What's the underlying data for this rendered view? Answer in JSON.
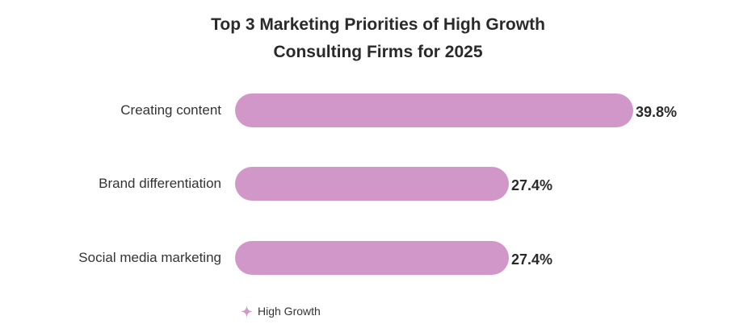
{
  "chart_data": {
    "type": "bar",
    "orientation": "horizontal",
    "title": "Top 3 Marketing Priorities of High Growth Consulting Firms for 2025",
    "title_lines": [
      "Top 3 Marketing Priorities of High Growth",
      "Consulting Firms for 2025"
    ],
    "categories": [
      "Creating content",
      "Brand differentiation",
      "Social media marketing"
    ],
    "series": [
      {
        "name": "High Growth",
        "values": [
          39.8,
          27.4,
          27.4
        ],
        "color": "#d197c9"
      }
    ],
    "value_labels": [
      "39.8%",
      "27.4%",
      "27.4%"
    ],
    "xlabel": "",
    "ylabel": "",
    "xlim": [
      0,
      48.4
    ],
    "grid": false,
    "legend_position": "bottom-left"
  },
  "legend": {
    "label": "High Growth",
    "icon": "four-point-star-icon",
    "color": "#d197c9"
  }
}
